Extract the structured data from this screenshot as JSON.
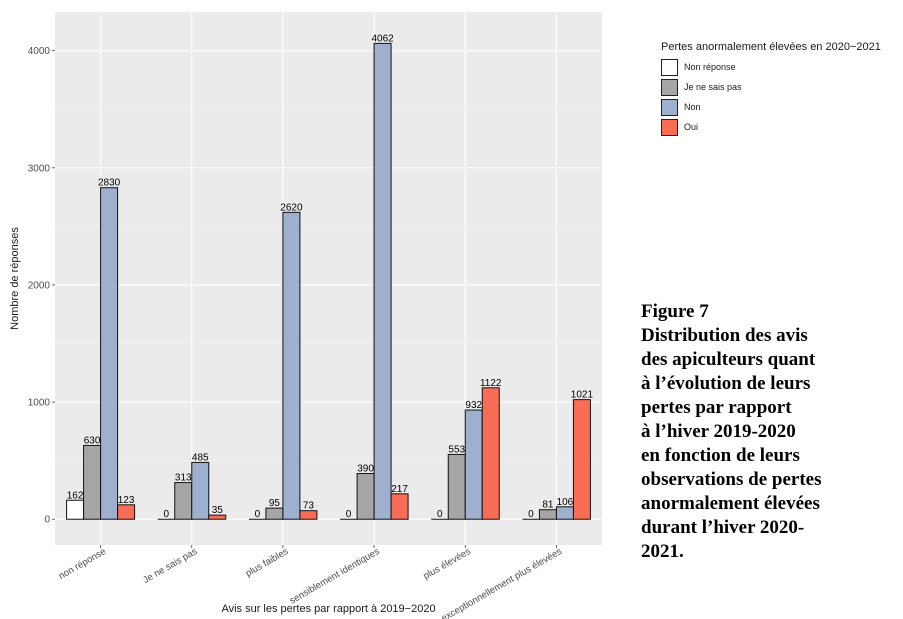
{
  "chart_data": {
    "type": "bar",
    "categories": [
      "non réponse",
      "Je ne sais pas",
      "plus faibles",
      "sensiblement identiques",
      "plus élevées",
      "exceptionnellement plus élevées"
    ],
    "series": [
      {
        "name": "Non réponse",
        "color": "#ffffff",
        "values": [
          162,
          0,
          0,
          0,
          0,
          0
        ]
      },
      {
        "name": "Je ne sais pas",
        "color": "#a6a6a6",
        "values": [
          630,
          313,
          95,
          390,
          553,
          81
        ]
      },
      {
        "name": "Non",
        "color": "#9fb0cf",
        "values": [
          2830,
          485,
          2620,
          4062,
          932,
          106
        ]
      },
      {
        "name": "Oui",
        "color": "#f96d56",
        "values": [
          123,
          35,
          73,
          217,
          1122,
          1021
        ]
      }
    ],
    "xlabel": "Avis sur les pertes par rapport à 2019−2020",
    "ylabel": "Nombre de réponses",
    "ylim": [
      -220,
      4330
    ],
    "yticks": [
      0,
      1000,
      2000,
      3000,
      4000
    ],
    "legend_title": "Pertes anormalement élevées en 2020−2021",
    "legend_position": "right",
    "grid": true,
    "panel_color": "#ebebeb"
  },
  "caption": {
    "lines": [
      "Figure 7",
      "Distribution des avis",
      "des apiculteurs quant",
      "à l’évolution de leurs",
      "pertes par rapport",
      "à l’hiver 2019-2020",
      "en fonction de leurs",
      "observations de pertes",
      "anormalement élevées",
      "durant l’hiver 2020-",
      "2021."
    ]
  }
}
